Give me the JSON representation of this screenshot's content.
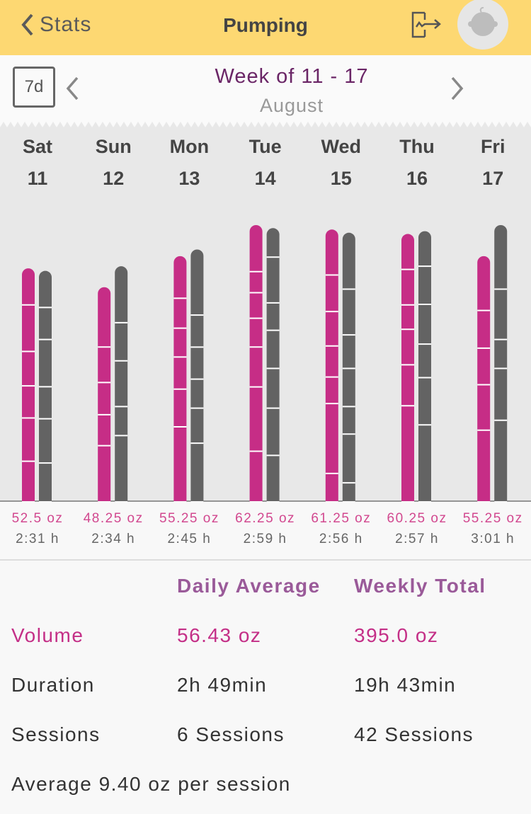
{
  "header": {
    "back_label": "Stats",
    "title": "Pumping",
    "export_icon": "export-chart-icon",
    "avatar_icon": "baby-avatar-icon",
    "bg": "#fdd872"
  },
  "nav": {
    "range_label": "7d",
    "week": "Week of 11 - 17",
    "month": "August"
  },
  "chart_data": {
    "type": "stacked-bar-pairs",
    "colors": {
      "volume": "#c62d86",
      "duration": "#636363"
    },
    "days": [
      {
        "day": "Sat",
        "date": "11",
        "volume_label": "52.5 oz",
        "duration_label": "2:31 h",
        "volume": 52.5,
        "duration_min": 151,
        "volume_sessions": [
          8.25,
          10.5,
          7.75,
          7.25,
          9.75,
          9.0
        ],
        "duration_sessions": [
          24,
          21,
          31,
          21,
          29,
          25
        ]
      },
      {
        "day": "Sun",
        "date": "12",
        "volume_label": "48.25 oz",
        "duration_label": "2:34 h",
        "volume": 48.25,
        "duration_min": 154,
        "volume_sessions": [
          13.5,
          8,
          7.25,
          7,
          12.5
        ],
        "duration_sessions": [
          37,
          25,
          30,
          19,
          43
        ]
      },
      {
        "day": "Mon",
        "date": "13",
        "volume_label": "55.25 oz",
        "duration_label": "2:45 h",
        "volume": 55.25,
        "duration_min": 165,
        "volume_sessions": [
          9.5,
          6.75,
          6.5,
          7.25,
          8.5,
          16.75
        ],
        "duration_sessions": [
          43,
          21,
          21,
          19,
          23,
          38
        ]
      },
      {
        "day": "Tue",
        "date": "14",
        "volume_label": "62.25 oz",
        "duration_label": "2:59 h",
        "volume": 62.25,
        "duration_min": 179,
        "volume_sessions": [
          10.5,
          4.75,
          5.75,
          6.5,
          9,
          14.5,
          11.25
        ],
        "duration_sessions": [
          19,
          30,
          18,
          25,
          26,
          31,
          30
        ]
      },
      {
        "day": "Wed",
        "date": "15",
        "volume_label": "61.25 oz",
        "duration_label": "2:56 h",
        "volume": 61.25,
        "duration_min": 176,
        "volume_sessions": [
          10.25,
          8.25,
          7.75,
          7,
          6,
          15.75,
          6.25
        ],
        "duration_sessions": [
          37,
          30,
          22,
          25,
          18,
          32,
          12
        ]
      },
      {
        "day": "Thu",
        "date": "16",
        "volume_label": "60.25 oz",
        "duration_label": "2:57 h",
        "volume": 60.25,
        "duration_min": 177,
        "volume_sessions": [
          8,
          8,
          5.5,
          8,
          9.25,
          21.5
        ],
        "duration_sessions": [
          23,
          25,
          26,
          22,
          31,
          50
        ]
      },
      {
        "day": "Fri",
        "date": "17",
        "volume_label": "55.25 oz",
        "duration_label": "3:01 h",
        "volume": 55.25,
        "duration_min": 181,
        "volume_sessions": [
          12.25,
          8.5,
          8.25,
          10.25,
          16
        ],
        "duration_sessions": [
          42,
          33,
          19,
          34,
          53
        ]
      }
    ]
  },
  "summary": {
    "col_daily": "Daily Average",
    "col_weekly": "Weekly Total",
    "rows": [
      {
        "label": "Volume",
        "daily": "56.43 oz",
        "weekly": "395.0 oz"
      },
      {
        "label": "Duration",
        "daily": "2h 49min",
        "weekly": "19h 43min"
      },
      {
        "label": "Sessions",
        "daily": "6 Sessions",
        "weekly": "42 Sessions"
      }
    ],
    "footer": "Average 9.40 oz per session"
  }
}
